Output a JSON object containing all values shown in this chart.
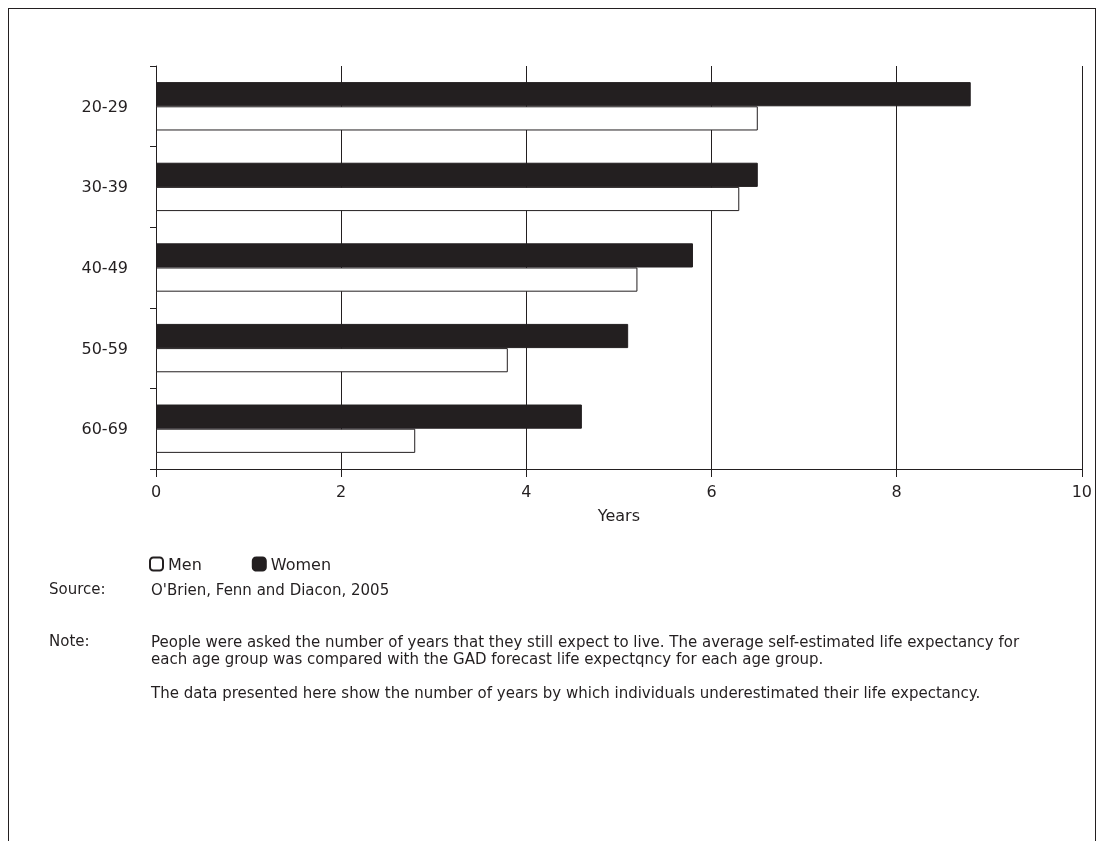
{
  "chart_data": {
    "type": "bar",
    "orientation": "horizontal",
    "xlabel": "Years",
    "categories": [
      "20-29",
      "30-39",
      "40-49",
      "50-59",
      "60-69"
    ],
    "series": [
      {
        "name": "Men",
        "color": "#ffffff",
        "values": [
          6.5,
          6.3,
          5.2,
          3.8,
          2.8
        ]
      },
      {
        "name": "Women",
        "color": "#231f20",
        "values": [
          8.8,
          6.5,
          5.8,
          5.1,
          4.6
        ]
      }
    ],
    "xlim": [
      0,
      10
    ],
    "xticks": [
      0,
      2,
      4,
      6,
      8,
      10
    ],
    "grid": "x",
    "legend": "bottom left",
    "annotations": [
      "Source:",
      "O'Brien, Fenn and Diacon, 2005",
      "Note:",
      "People were asked the number of years that they still expect to live. The average self-estimated life expectancy for each age group was compared with the GAD forecast life expectqncy for each age group.\n\nThe data presented here show the number of years by which individuals underestimated their life expectancy."
    ]
  }
}
